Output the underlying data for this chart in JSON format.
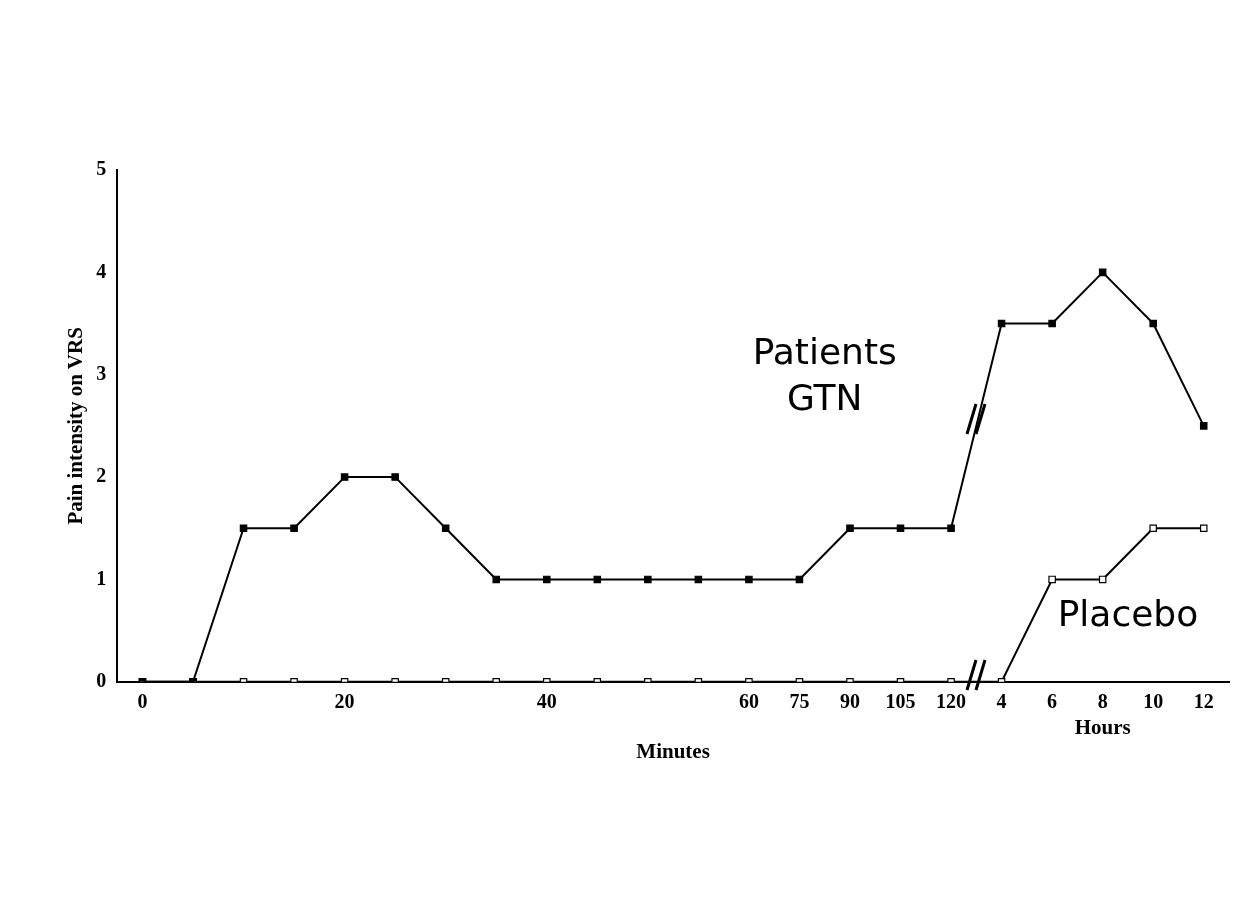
{
  "chart_data": {
    "type": "line",
    "xlabel": "Minutes",
    "ylabel": "Pain intensity on VRS",
    "categories": [
      "0",
      null,
      null,
      null,
      "20",
      null,
      null,
      null,
      "40",
      null,
      null,
      null,
      "60",
      "75",
      "90",
      "105",
      "120",
      "4",
      "6",
      "8",
      "10",
      "12"
    ],
    "series": [
      {
        "name": "Patients GTN",
        "color": "#000000",
        "values": [
          0,
          0,
          1.5,
          1.5,
          2,
          2,
          1.5,
          1,
          1,
          1,
          1,
          1,
          1,
          1,
          1.5,
          1.5,
          1.5,
          3.5,
          3.5,
          4,
          3.5,
          2.5
        ]
      },
      {
        "name": "Placebo",
        "color": "#000000",
        "values": [
          0,
          0,
          0,
          0,
          0,
          0,
          0,
          0,
          0,
          0,
          0,
          0,
          0,
          0,
          0,
          0,
          0,
          0,
          1,
          1,
          1.5,
          1.5
        ]
      }
    ],
    "ylim": [
      0,
      5
    ],
    "yticks": [
      0,
      1,
      2,
      3,
      4,
      5
    ],
    "grid": false,
    "legend": false,
    "marker": "square",
    "line_style": "solid",
    "annotations": [
      "Hours"
    ]
  }
}
